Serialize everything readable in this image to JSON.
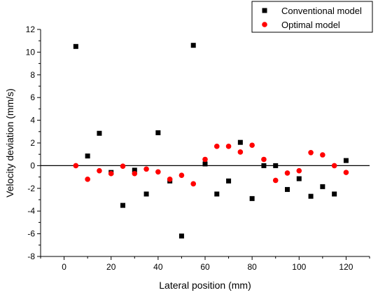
{
  "chart_data": {
    "type": "scatter",
    "title": "",
    "xlabel": "Lateral position (mm)",
    "ylabel": "Velocity deviation (mm/s)",
    "xlim": [
      -10,
      130
    ],
    "ylim": [
      -8,
      12
    ],
    "xticks": [
      0,
      20,
      40,
      60,
      80,
      100,
      120
    ],
    "yticks": [
      -8,
      -6,
      -4,
      -2,
      0,
      2,
      4,
      6,
      8,
      10,
      12
    ],
    "grid": false,
    "zero_line": true,
    "legend_position": "top-right",
    "series": [
      {
        "name": "Conventional model",
        "marker": "square",
        "color": "#000000",
        "x": [
          5,
          10,
          15,
          20,
          25,
          30,
          35,
          40,
          45,
          50,
          55,
          60,
          65,
          70,
          75,
          80,
          85,
          90,
          95,
          100,
          105,
          110,
          115,
          120
        ],
        "y": [
          10.5,
          0.85,
          2.85,
          -0.6,
          -3.5,
          -0.4,
          -2.5,
          2.9,
          -1.35,
          -6.2,
          10.6,
          0.15,
          -2.5,
          -1.35,
          2.05,
          -2.9,
          0.0,
          0.0,
          -2.1,
          -1.15,
          -2.7,
          -1.85,
          -2.5,
          0.45
        ]
      },
      {
        "name": "Optimal model",
        "marker": "circle",
        "color": "#ff0000",
        "x": [
          5,
          10,
          15,
          20,
          25,
          30,
          35,
          40,
          45,
          50,
          55,
          60,
          65,
          70,
          75,
          80,
          85,
          90,
          95,
          100,
          105,
          110,
          115,
          120
        ],
        "y": [
          0.0,
          -1.2,
          -0.45,
          -0.7,
          -0.05,
          -0.7,
          -0.3,
          -0.55,
          -1.2,
          -0.85,
          -1.6,
          0.55,
          1.7,
          1.7,
          1.2,
          1.8,
          0.55,
          -1.3,
          -0.65,
          -0.45,
          1.15,
          0.95,
          0.0,
          -0.6
        ]
      }
    ]
  }
}
